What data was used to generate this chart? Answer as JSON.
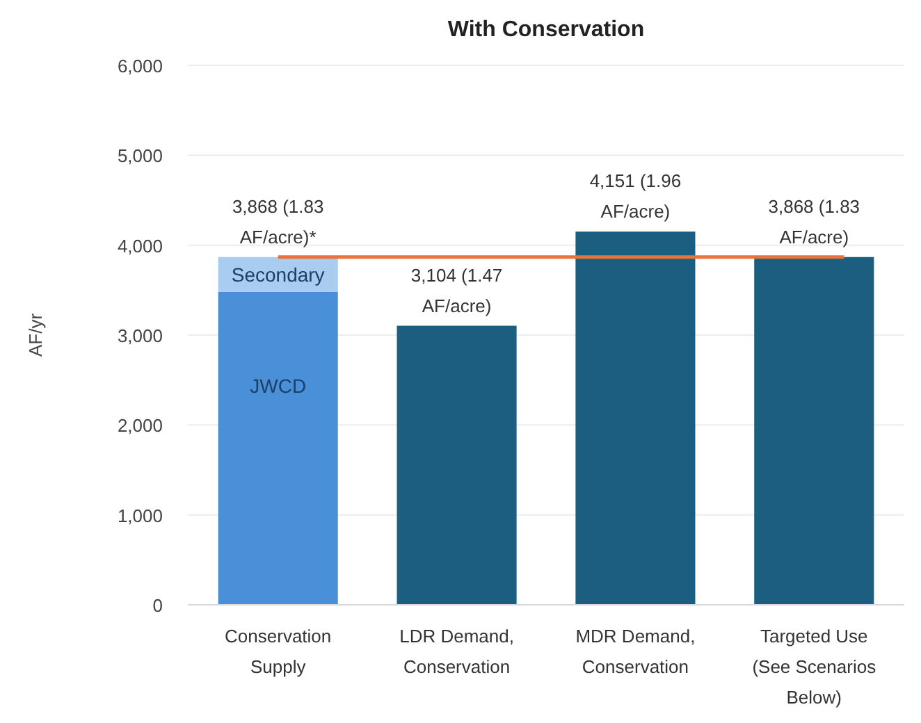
{
  "chart_data": {
    "type": "bar",
    "title": "With Conservation",
    "ylabel": "AF/yr",
    "stacked": true,
    "categories": [
      "Conservation Supply",
      "LDR Demand, Conservation",
      "MDR Demand, Conservation",
      "Targeted Use (See Scenarios Below)"
    ],
    "series": [
      {
        "name": "JWCD",
        "color": "#4a90d9",
        "values": [
          3480,
          null,
          null,
          null
        ]
      },
      {
        "name": "Secondary",
        "color": "#a9cdf0",
        "values": [
          388,
          null,
          null,
          null
        ]
      },
      {
        "color": "#1b5e80",
        "values": [
          null,
          3104,
          4151,
          3868
        ]
      }
    ],
    "totals": [
      "3,868 (1.83 AF/acre)*",
      "3,104 (1.47 AF/acre)",
      "4,151 (1.96 AF/acre)",
      "3,868 (1.83 AF/acre)"
    ],
    "ref_lines": [
      {
        "axis": "y",
        "value": 3868,
        "color": "#e8743b"
      }
    ],
    "ylim": [
      0,
      6000
    ],
    "yticks": [
      {
        "value": 0,
        "label": "0"
      },
      {
        "value": 1000,
        "label": "1,000"
      },
      {
        "value": 2000,
        "label": "2,000"
      },
      {
        "value": 3000,
        "label": "3,000"
      },
      {
        "value": 4000,
        "label": "4,000"
      },
      {
        "value": 5000,
        "label": "5,000"
      },
      {
        "value": 6000,
        "label": "6,000"
      }
    ],
    "grid": "y"
  }
}
